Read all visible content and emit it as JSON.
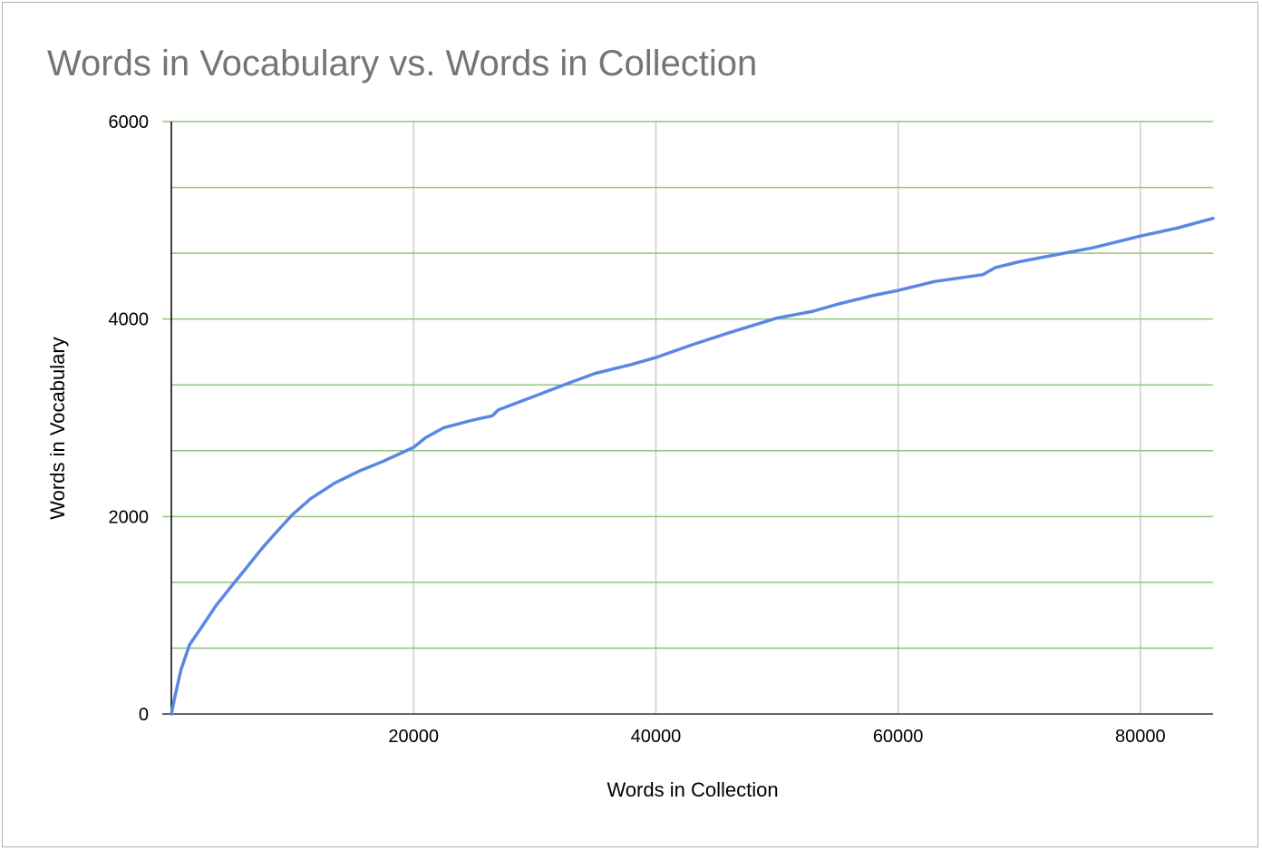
{
  "chart_data": {
    "type": "line",
    "title": "Words in Vocabulary vs. Words in Collection",
    "xlabel": "Words in Collection",
    "ylabel": "Words in Vocabulary",
    "xlim": [
      0,
      86000
    ],
    "ylim": [
      0,
      6000
    ],
    "x_ticks": [
      20000,
      40000,
      60000,
      80000
    ],
    "x_tick_labels": [
      "20000",
      "40000",
      "60000",
      "80000"
    ],
    "y_ticks": [
      0,
      2000,
      4000,
      6000
    ],
    "y_tick_labels": [
      "0",
      "2000",
      "4000",
      "6000"
    ],
    "y_minor_gridlines": [
      667,
      1333,
      2667,
      3333,
      4667,
      5333
    ],
    "grid": true,
    "legend": "none",
    "colors": {
      "line": "#5b87e4",
      "horizontal_grid": "#93c47d",
      "vertical_grid": "#cccccc",
      "title": "#757575"
    },
    "series": [
      {
        "x": [
          0,
          300,
          800,
          1500,
          2500,
          3700,
          5000,
          6200,
          7500,
          8800,
          10000,
          11500,
          13500,
          15500,
          17500,
          20000,
          21000,
          22500,
          25000,
          26500,
          27000,
          30000,
          33000,
          35000,
          38000,
          40000,
          43000,
          46000,
          50000,
          53000,
          55000,
          58000,
          60000,
          63000,
          67000,
          68000,
          70000,
          73000,
          76000,
          78000,
          80000,
          83000,
          86000
        ],
        "y": [
          0,
          180,
          450,
          700,
          880,
          1100,
          1300,
          1480,
          1680,
          1860,
          2020,
          2180,
          2340,
          2460,
          2560,
          2700,
          2800,
          2900,
          2980,
          3020,
          3080,
          3220,
          3360,
          3450,
          3540,
          3610,
          3740,
          3860,
          4010,
          4080,
          4150,
          4240,
          4290,
          4380,
          4450,
          4520,
          4580,
          4650,
          4720,
          4780,
          4840,
          4920,
          5020
        ]
      }
    ]
  }
}
